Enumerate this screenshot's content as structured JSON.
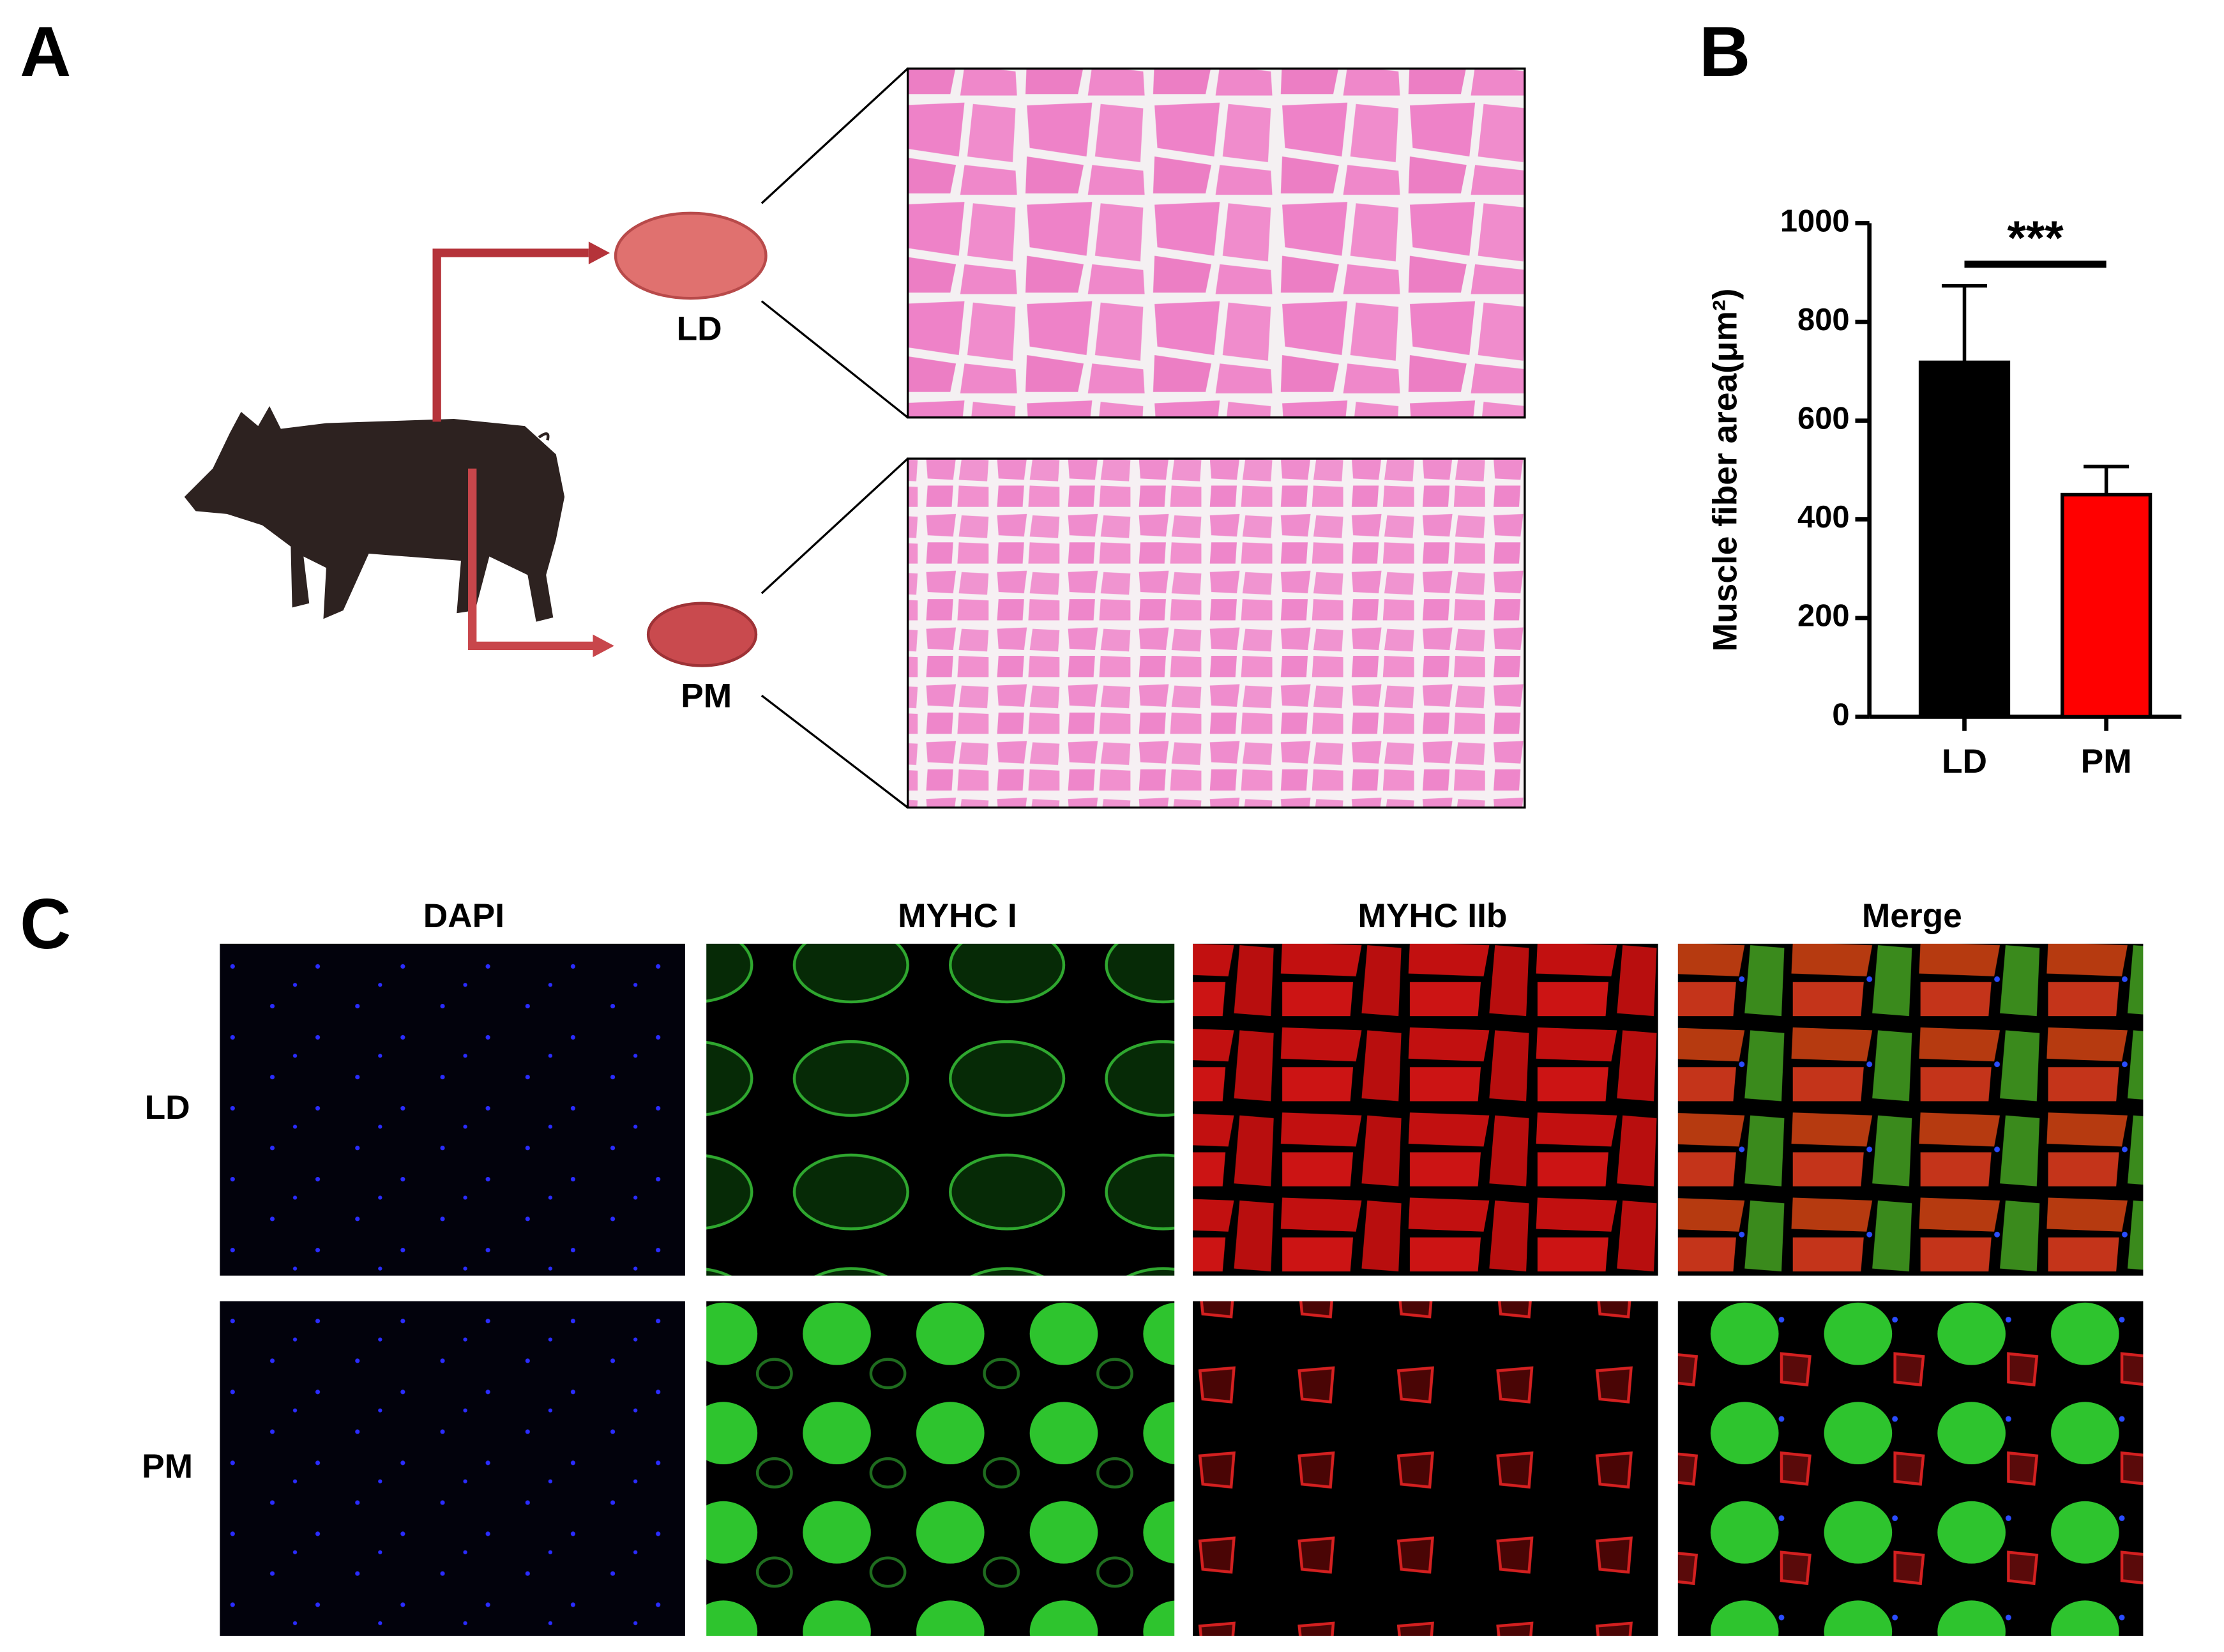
{
  "panel_labels": [
    "A",
    "B",
    "C"
  ],
  "panel_a": {
    "tissues": [
      "LD",
      "PM"
    ]
  },
  "chart_data": {
    "type": "bar",
    "ylabel": "Muscle fiber area(μm²)",
    "categories": [
      "LD",
      "PM"
    ],
    "values": [
      718,
      450
    ],
    "errors": [
      155,
      57
    ],
    "colors": [
      "#000000",
      "#ff0000"
    ],
    "ylim": [
      0,
      1000
    ],
    "yticks": [
      0,
      200,
      400,
      600,
      800,
      1000
    ],
    "significance": "***",
    "grid": false
  },
  "panel_c": {
    "columns": [
      "DAPI",
      "MYHC I",
      "MYHC IIb",
      "Merge"
    ],
    "rows": [
      "LD",
      "PM"
    ]
  }
}
